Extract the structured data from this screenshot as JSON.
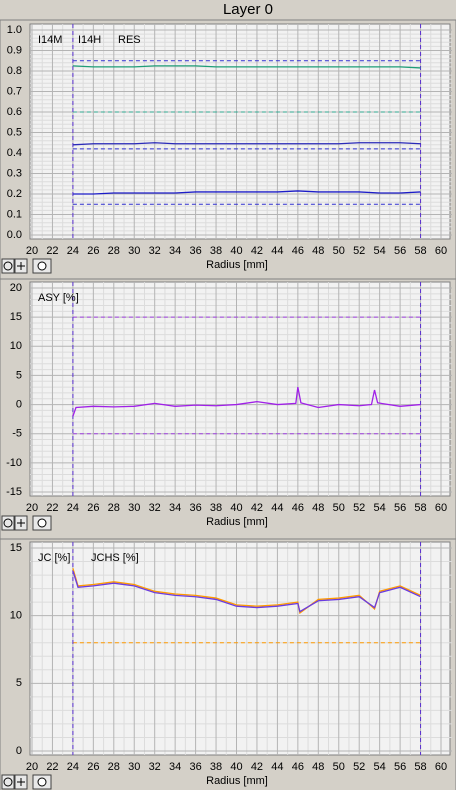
{
  "title": "Layer 0",
  "chart_data": [
    {
      "type": "line",
      "xlabel": "Radius [mm]",
      "x": [
        24,
        26,
        28,
        30,
        32,
        34,
        36,
        38,
        40,
        42,
        44,
        46,
        48,
        50,
        52,
        54,
        56,
        58
      ],
      "series": [
        {
          "name": "I14M",
          "color": "#1f9e78",
          "values": [
            0.825,
            0.82,
            0.82,
            0.82,
            0.825,
            0.825,
            0.825,
            0.82,
            0.82,
            0.82,
            0.82,
            0.82,
            0.82,
            0.82,
            0.82,
            0.82,
            0.82,
            0.815
          ]
        },
        {
          "name": "I14H",
          "color": "#2a2ab8",
          "values": [
            0.44,
            0.445,
            0.445,
            0.445,
            0.45,
            0.445,
            0.445,
            0.445,
            0.445,
            0.445,
            0.445,
            0.445,
            0.445,
            0.445,
            0.45,
            0.45,
            0.45,
            0.445
          ]
        },
        {
          "name": "RES",
          "color": "#1c1cc8",
          "values": [
            0.2,
            0.2,
            0.205,
            0.205,
            0.205,
            0.205,
            0.21,
            0.21,
            0.21,
            0.21,
            0.21,
            0.215,
            0.21,
            0.21,
            0.21,
            0.205,
            0.205,
            0.21
          ]
        }
      ],
      "hlines": [
        {
          "value": 0.85,
          "color": "#3030d0"
        },
        {
          "value": 0.6,
          "color": "#30a890"
        },
        {
          "value": 0.42,
          "color": "#3030d0"
        },
        {
          "value": 0.15,
          "color": "#3030d0"
        }
      ],
      "vlines": [
        {
          "value": 24,
          "color": "#5a30d0"
        },
        {
          "value": 58,
          "color": "#5a30d0"
        }
      ],
      "xlim": [
        20,
        60
      ],
      "ylim": [
        0,
        1
      ],
      "xticks": [
        20,
        22,
        24,
        26,
        28,
        30,
        32,
        34,
        36,
        38,
        40,
        42,
        44,
        46,
        48,
        50,
        52,
        54,
        56,
        58,
        60
      ],
      "yticks": [
        {
          "value": 0,
          "label": "0.0"
        },
        0.1,
        0.2,
        0.3,
        0.4,
        0.5,
        0.6,
        0.7,
        0.8,
        0.9,
        {
          "value": 1,
          "label": "1.0"
        }
      ],
      "grid": true
    },
    {
      "type": "line",
      "xlabel": "Radius [mm]",
      "x": [
        24,
        24.3,
        26,
        28,
        30,
        32,
        34,
        36,
        38,
        40,
        42,
        44,
        45.8,
        46,
        46.3,
        48,
        50,
        52,
        53.2,
        53.5,
        53.8,
        56,
        58
      ],
      "series": [
        {
          "name": "ASY [%]",
          "color": "#a020e8",
          "values": [
            -2,
            -0.5,
            -0.3,
            -0.4,
            -0.3,
            0.2,
            -0.3,
            -0.1,
            -0.2,
            0,
            0.5,
            0,
            0.2,
            3,
            0.3,
            -0.5,
            0,
            -0.2,
            0,
            2.5,
            0.3,
            -0.3,
            0
          ]
        }
      ],
      "hlines": [
        {
          "value": 15,
          "color": "#a040e0"
        },
        {
          "value": -5,
          "color": "#a040e0"
        }
      ],
      "vlines": [
        {
          "value": 24,
          "color": "#5a30d0"
        },
        {
          "value": 58,
          "color": "#5a30d0"
        }
      ],
      "xlim": [
        20,
        60
      ],
      "ylim": [
        -15,
        20
      ],
      "xticks": [
        20,
        22,
        24,
        26,
        28,
        30,
        32,
        34,
        36,
        38,
        40,
        42,
        44,
        46,
        48,
        50,
        52,
        54,
        56,
        58,
        60
      ],
      "yticks": [
        -15,
        -10,
        -5,
        0,
        5,
        10,
        15,
        20
      ],
      "grid": true
    },
    {
      "type": "line",
      "xlabel": "Radius [mm]",
      "x": [
        24,
        24.5,
        26,
        28,
        30,
        32,
        34,
        36,
        38,
        40,
        42,
        44,
        46,
        46.2,
        48,
        50,
        52,
        53.5,
        54,
        56,
        58
      ],
      "series": [
        {
          "name": "JC [%]",
          "color": "#ff9a00",
          "values": [
            13.5,
            12.2,
            12.3,
            12.5,
            12.3,
            11.8,
            11.6,
            11.5,
            11.3,
            10.8,
            10.7,
            10.8,
            11,
            10.2,
            11.2,
            11.3,
            11.5,
            10.5,
            11.8,
            12.2,
            11.5
          ]
        },
        {
          "name": "JCHS [%]",
          "color": "#6a3ce0",
          "values": [
            13.3,
            12.1,
            12.2,
            12.4,
            12.2,
            11.7,
            11.5,
            11.4,
            11.2,
            10.7,
            10.6,
            10.7,
            10.9,
            10.3,
            11.1,
            11.2,
            11.4,
            10.6,
            11.7,
            12.1,
            11.4
          ]
        }
      ],
      "hlines": [
        {
          "value": 8,
          "color": "#ff9a00"
        }
      ],
      "vlines": [
        {
          "value": 24,
          "color": "#5a30d0"
        },
        {
          "value": 58,
          "color": "#5a30d0"
        }
      ],
      "xlim": [
        20,
        60
      ],
      "ylim": [
        0,
        15
      ],
      "xticks": [
        20,
        22,
        24,
        26,
        28,
        30,
        32,
        34,
        36,
        38,
        40,
        42,
        44,
        46,
        48,
        50,
        52,
        54,
        56,
        58,
        60
      ],
      "yticks": [
        0,
        5,
        10,
        15
      ],
      "grid": true
    }
  ]
}
